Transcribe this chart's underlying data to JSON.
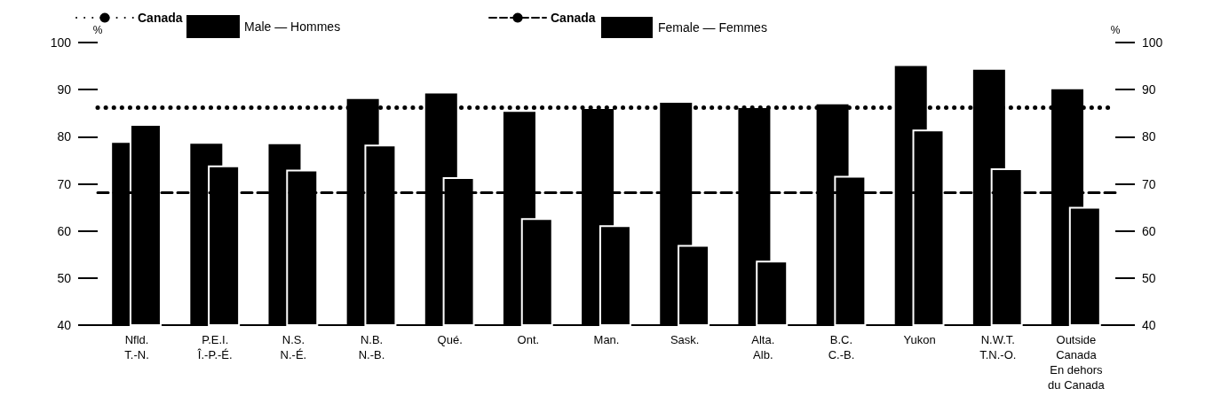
{
  "chart_data": {
    "type": "bar",
    "categories": [
      "Nfld.\nT.-N.",
      "P.E.I.\nÎ.-P.-É.",
      "N.S.\nN.-É.",
      "N.B.\nN.-B.",
      "Qué.",
      "Ont.",
      "Man.",
      "Sask.",
      "Alta.\nAlb.",
      "B.C.\nC.-B.",
      "Yukon",
      "N.W.T.\nT.N.-O.",
      "Outside\nCanada\nEn dehors\ndu Canada"
    ],
    "series": [
      {
        "name": "Male — Hommes",
        "color": "#000000",
        "values": [
          78.7,
          78.5,
          78.4,
          88.0,
          89.2,
          85.3,
          85.9,
          87.2,
          86.1,
          86.9,
          95.0,
          94.2,
          90.1
        ]
      },
      {
        "name": "Female — Femmes",
        "color": "#000000",
        "values": [
          82.7,
          73.9,
          73.0,
          78.3,
          71.4,
          62.7,
          61.2,
          57.0,
          53.7,
          71.7,
          81.5,
          73.3,
          65.1
        ]
      }
    ],
    "ylabel": "%",
    "y2label": "%",
    "ylim": [
      40,
      100
    ],
    "yticks": [
      40,
      50,
      60,
      70,
      80,
      90,
      100
    ],
    "y2lim": [
      40,
      100
    ],
    "y2ticks": [
      40,
      50,
      60,
      70,
      80,
      90,
      100
    ],
    "ref_lines": [
      {
        "axis": "y",
        "value": 86.2,
        "label": "Canada",
        "line_style": "dotted",
        "color": "#000000"
      },
      {
        "axis": "y",
        "value": 68.1,
        "label": "Canada",
        "line_style": "dashed",
        "color": "#000000"
      }
    ],
    "legend": "top",
    "grid": false
  }
}
